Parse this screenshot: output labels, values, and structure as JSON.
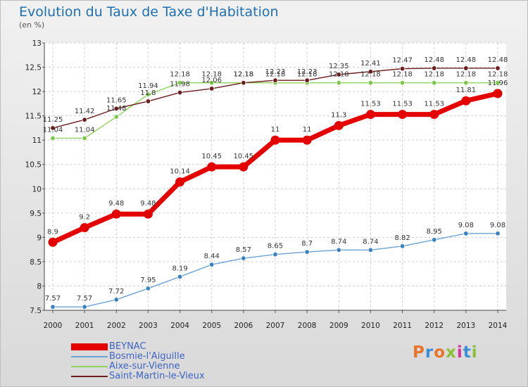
{
  "title": "Evolution du Taux de Taxe d'Habitation",
  "units": "(en %)",
  "logo": {
    "text": "Proxiti",
    "letter_colors": [
      "#e8742a",
      "#3b8fd6",
      "#e8742a",
      "#8bbf3a",
      "#d6339e",
      "#3b8fd6",
      "#8bbf3a"
    ]
  },
  "legend": [
    {
      "label": "BEYNAC",
      "color": "#e50000"
    },
    {
      "label": "Bosmie-l'Aiguille",
      "color": "#6aa2d4"
    },
    {
      "label": "Aixe-sur-Vienne",
      "color": "#8ed45a"
    },
    {
      "label": "Saint-Martin-le-Vieux",
      "color": "#6b1c1c"
    }
  ],
  "chart_data": {
    "type": "line",
    "x": [
      "2000",
      "2001",
      "2002",
      "2003",
      "2004",
      "2005",
      "2006",
      "2007",
      "2008",
      "2009",
      "2010",
      "2011",
      "2012",
      "2013",
      "2014"
    ],
    "ylim": [
      7.5,
      13
    ],
    "yticks": [
      "7.5",
      "8",
      "8.5",
      "9",
      "9.5",
      "10",
      "10.5",
      "11",
      "11.5",
      "12",
      "12.5",
      "13"
    ],
    "grid": true,
    "series": [
      {
        "name": "BEYNAC",
        "color": "#e50000",
        "width": 7,
        "marker_radius": 6.5,
        "marker_fill": "#e50000",
        "values": [
          8.9,
          9.2,
          9.48,
          9.48,
          10.14,
          10.45,
          10.45,
          11,
          11,
          11.3,
          11.53,
          11.53,
          11.53,
          11.81,
          11.96
        ],
        "labels": [
          "8.9",
          "9.2",
          "9.48",
          "9.48",
          "10.14",
          "10.45",
          "10.45",
          "11",
          "11",
          "11.3",
          "11.53",
          "11.53",
          "11.53",
          "11.81",
          "11.96"
        ]
      },
      {
        "name": "Bosmie-l'Aiguille",
        "color": "#6aa2d4",
        "width": 1.4,
        "marker_radius": 3.3,
        "marker_fill": "#3a82c2",
        "values": [
          7.57,
          7.57,
          7.72,
          7.95,
          8.19,
          8.44,
          8.57,
          8.65,
          8.7,
          8.74,
          8.74,
          8.82,
          8.95,
          9.08,
          9.08
        ],
        "labels": [
          "7.57",
          "7.57",
          "7.72",
          "7.95",
          "8.19",
          "8.44",
          "8.57",
          "8.65",
          "8.7",
          "8.74",
          "8.74",
          "8.82",
          "8.95",
          "9.08",
          "9.08"
        ]
      },
      {
        "name": "Aixe-sur-Vienne",
        "color": "#8ed45a",
        "width": 1.4,
        "marker_radius": 3.3,
        "marker_fill": "#7cc84a",
        "values": [
          11.04,
          11.04,
          11.48,
          11.94,
          12.18,
          12.18,
          12.18,
          12.18,
          12.18,
          12.18,
          12.18,
          12.18,
          12.18,
          12.18,
          12.18
        ],
        "labels": [
          "11.04",
          "11.04",
          "11.48",
          "11.94",
          "12.18",
          "12.18",
          "12.18",
          "12.18",
          "12.18",
          "12.18",
          "12.18",
          "12.18",
          "12.18",
          "12.18",
          "12.18"
        ]
      },
      {
        "name": "Saint-Martin-le-Vieux",
        "color": "#6b1c1c",
        "width": 1.4,
        "marker_radius": 3.3,
        "marker_fill": "#6b1c1c",
        "values": [
          11.25,
          11.42,
          11.65,
          11.8,
          11.98,
          12.06,
          12.18,
          12.23,
          12.23,
          12.35,
          12.41,
          12.47,
          12.48,
          12.48,
          12.48
        ],
        "labels": [
          "11.25",
          "11.42",
          "11.65",
          "11.8",
          "11.98",
          "12.06",
          "12.18",
          "12.23",
          "12.23",
          "12.35",
          "12.41",
          "12.47",
          "12.48",
          "12.48",
          "12.48"
        ]
      }
    ]
  }
}
